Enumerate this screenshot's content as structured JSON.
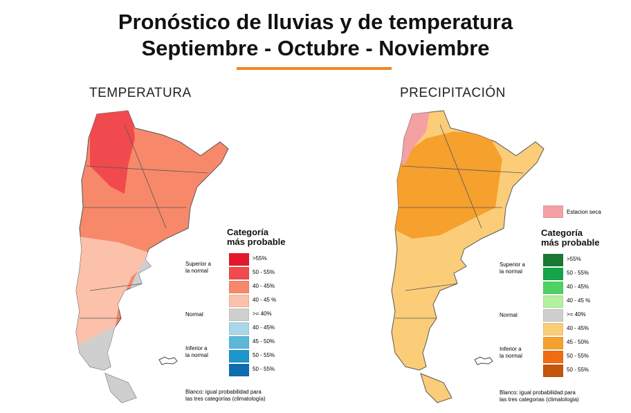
{
  "title": {
    "line1": "Pronóstico de lluvias y de temperatura",
    "line2": "Septiembre - Octubre - Noviembre"
  },
  "accent": "#f0861d",
  "temperature": {
    "title": "TEMPERATURA",
    "legend_title_1": "Categoría",
    "legend_title_2": "más probable",
    "groups": [
      "Superior a",
      "la normal",
      "Normal",
      "Inferior a",
      "la normal"
    ],
    "items": [
      {
        "label": ">55%",
        "color": "#e3192b"
      },
      {
        "label": "50 - 55%",
        "color": "#f04a4e"
      },
      {
        "label": "40 - 45%",
        "color": "#f7896a"
      },
      {
        "label": "40 - 45 %",
        "color": "#fbc1aa"
      },
      {
        "label": ">= 40%",
        "color": "#cfcfcf"
      },
      {
        "label": "40 - 45%",
        "color": "#a7d7e8"
      },
      {
        "label": "45 - 50%",
        "color": "#5bb8d9"
      },
      {
        "label": "50 - 55%",
        "color": "#1c96cb"
      },
      {
        "label": "50 - 55%",
        "color": "#0d6db0"
      }
    ],
    "note_1": "Blanco: igual probabilidad para",
    "note_2": "las tres categorías (climatología)"
  },
  "precipitation": {
    "title": "PRECIPITACIÓN",
    "dry_label": "Estacion seca",
    "dry_color": "#f5a0a3",
    "legend_title_1": "Categoría",
    "legend_title_2": "más probable",
    "groups": [
      "Superior a",
      "la normal",
      "Normal",
      "Inferior a",
      "la normal"
    ],
    "items": [
      {
        "label": ">55%",
        "color": "#1a7a34"
      },
      {
        "label": "50 - 55%",
        "color": "#14a54a"
      },
      {
        "label": "40 - 45%",
        "color": "#4fd165"
      },
      {
        "label": "40 - 45 %",
        "color": "#b3f0a0"
      },
      {
        "label": ">= 40%",
        "color": "#cfcfcf"
      },
      {
        "label": "40 - 45%",
        "color": "#fbcd78"
      },
      {
        "label": "45 - 50%",
        "color": "#f6a02e"
      },
      {
        "label": "50 - 55%",
        "color": "#f26b12"
      },
      {
        "label": "50 - 55%",
        "color": "#c4550c"
      }
    ],
    "note_1": "Blanco: igual probabilidad para",
    "note_2": "las tres categorias (climatologia)"
  }
}
